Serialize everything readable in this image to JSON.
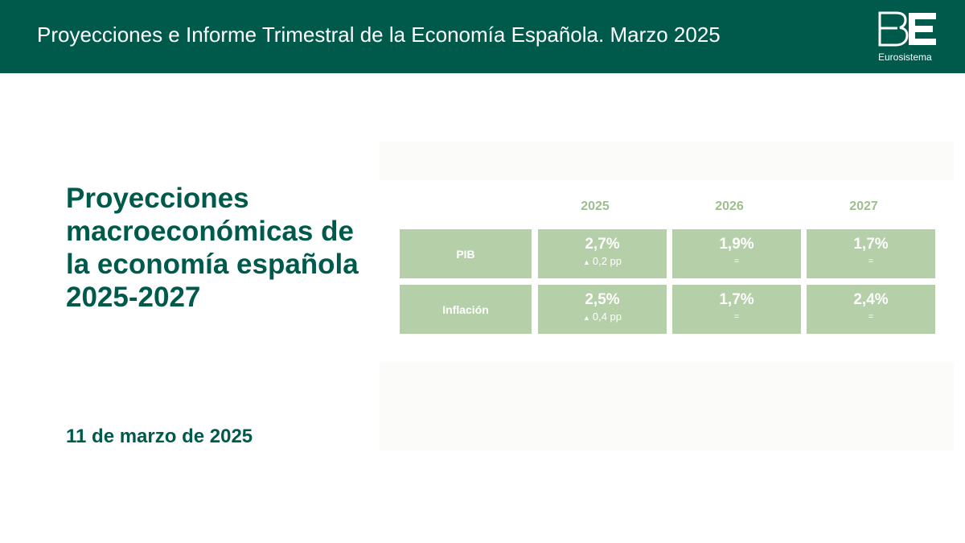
{
  "header": {
    "title": "Proyecciones e Informe Trimestral de la Economía Española. Marzo 2025",
    "logo_mark": "BE",
    "logo_text": "Eurosistema",
    "background_color": "#005a4c"
  },
  "main": {
    "title": "Proyecciones macroeconómicas de la economía española 2025-2027",
    "date": "11 de marzo de 2025",
    "accent_color": "#005a4c"
  },
  "table": {
    "years": [
      "2025",
      "2026",
      "2027"
    ],
    "cell_color": "#b5cfa9",
    "header_color": "#9cbf8e",
    "rows": [
      {
        "label": "PIB",
        "values": [
          {
            "value": "2,7%",
            "change": "0,2 pp",
            "change_icon": "triangle-up-icon"
          },
          {
            "value": "1,9%",
            "change": "="
          },
          {
            "value": "1,7%",
            "change": "="
          }
        ]
      },
      {
        "label": "Inflación",
        "values": [
          {
            "value": "2,5%",
            "change": "0,4 pp",
            "change_icon": "triangle-up-icon"
          },
          {
            "value": "1,7%",
            "change": "="
          },
          {
            "value": "2,4%",
            "change": "="
          }
        ]
      }
    ]
  }
}
